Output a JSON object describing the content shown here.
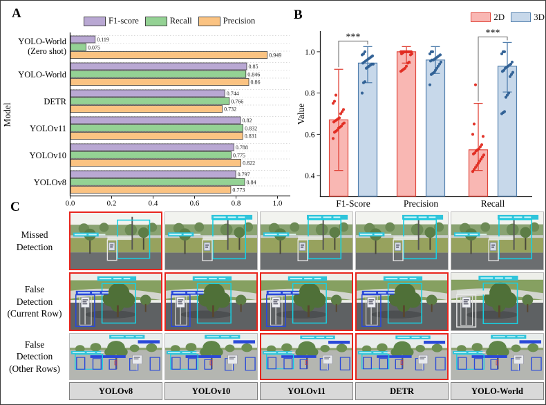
{
  "figure": {
    "panel_a_label": "A",
    "panel_b_label": "B",
    "panel_c_label": "C"
  },
  "chart_data": [
    {
      "id": "A",
      "type": "bar",
      "orientation": "horizontal",
      "ylabel": "Model",
      "xlim": [
        0,
        1.05
      ],
      "xticks": [
        "0.0",
        "0.2",
        "0.4",
        "0.6",
        "0.8",
        "1.0"
      ],
      "grid": "dotted-horizontal",
      "legend_position": "top",
      "categories": [
        "YOLO-World\n(Zero shot)",
        "YOLO-World",
        "DETR",
        "YOLOv11",
        "YOLOv10",
        "YOLOv8"
      ],
      "series": [
        {
          "name": "F1-score",
          "color": "#b9a8d3",
          "values": [
            0.119,
            0.85,
            0.744,
            0.82,
            0.788,
            0.797
          ]
        },
        {
          "name": "Recall",
          "color": "#94d294",
          "values": [
            0.075,
            0.846,
            0.766,
            0.832,
            0.775,
            0.84
          ]
        },
        {
          "name": "Precision",
          "color": "#fbc382",
          "values": [
            0.949,
            0.86,
            0.732,
            0.831,
            0.822,
            0.773
          ]
        }
      ]
    },
    {
      "id": "B",
      "type": "bar-scatter",
      "ylabel": "Value",
      "ylim": [
        0.3,
        1.1
      ],
      "yticks": [
        "0.4",
        "0.6",
        "0.8",
        "1.0"
      ],
      "legend_position": "top-right",
      "categories": [
        "F1-Score",
        "Precision",
        "Recall"
      ],
      "series": [
        {
          "name": "2D",
          "fill": "#f9b7b3",
          "edge": "#e0453a",
          "dot": "#e02a20",
          "means": [
            0.67,
            1.0,
            0.525
          ],
          "err_low": [
            0.425,
            0.945,
            0.425
          ],
          "err_high": [
            0.915,
            1.025,
            0.75
          ],
          "points": [
            [
              0.58,
              0.61,
              0.615,
              0.62,
              0.63,
              0.635,
              0.64,
              0.65,
              0.655,
              0.66,
              0.665,
              0.67,
              0.675,
              0.68,
              0.7,
              0.71,
              0.72,
              0.75,
              0.76,
              0.79
            ],
            [
              0.905,
              0.91,
              0.915,
              0.92,
              0.93,
              0.945,
              0.95,
              0.985,
              0.99,
              0.99,
              0.995,
              1.0,
              1.0,
              1.0,
              1.0,
              1.0,
              1.0,
              1.0,
              1.0,
              1.0
            ],
            [
              0.42,
              0.43,
              0.44,
              0.45,
              0.46,
              0.47,
              0.48,
              0.49,
              0.5,
              0.505,
              0.51,
              0.52,
              0.525,
              0.53,
              0.54,
              0.55,
              0.59,
              0.6,
              0.65,
              0.84
            ]
          ]
        },
        {
          "name": "3D",
          "fill": "#c7d8ea",
          "edge": "#5380ae",
          "dot": "#2e5f93",
          "means": [
            0.945,
            0.96,
            0.93
          ],
          "err_low": [
            0.85,
            0.895,
            0.805
          ],
          "err_high": [
            1.025,
            1.025,
            1.045
          ],
          "points": [
            [
              0.8,
              0.85,
              0.855,
              0.92,
              0.925,
              0.93,
              0.935,
              0.94,
              0.94,
              0.945,
              0.95,
              0.955,
              0.96,
              0.965,
              0.97,
              0.975,
              0.98,
              0.985,
              0.99,
              1.0
            ],
            [
              0.84,
              0.89,
              0.895,
              0.9,
              0.91,
              0.92,
              0.93,
              0.94,
              0.95,
              0.955,
              0.96,
              0.96,
              0.965,
              0.97,
              0.975,
              0.98,
              0.985,
              0.99,
              1.0,
              1.0
            ],
            [
              0.7,
              0.705,
              0.71,
              0.78,
              0.79,
              0.8,
              0.88,
              0.89,
              0.9,
              0.905,
              0.91,
              0.92,
              0.925,
              0.93,
              0.935,
              0.94,
              0.95,
              0.99,
              1.0,
              1.0
            ]
          ]
        }
      ],
      "significance": [
        {
          "category": "F1-Score",
          "label": "***"
        },
        {
          "category": "Recall",
          "label": "***"
        }
      ]
    }
  ],
  "panelC": {
    "row_labels": [
      [
        "Missed",
        "Detection"
      ],
      [
        "False",
        "Detection",
        "(Current Row)"
      ],
      [
        "False",
        "Detection",
        "(Other Rows)"
      ]
    ],
    "models": [
      "YOLOv8",
      "YOLOv10",
      "YOLOv11",
      "DETR",
      "YOLO-World"
    ],
    "rows": [
      {
        "scene": "roadside",
        "highlights": [
          true,
          false,
          false,
          false,
          false
        ]
      },
      {
        "scene": "tree",
        "highlights": [
          true,
          true,
          true,
          true,
          false
        ]
      },
      {
        "scene": "lot",
        "highlights": [
          false,
          false,
          true,
          true,
          false
        ]
      }
    ],
    "highlight_color": "#e8251d"
  }
}
